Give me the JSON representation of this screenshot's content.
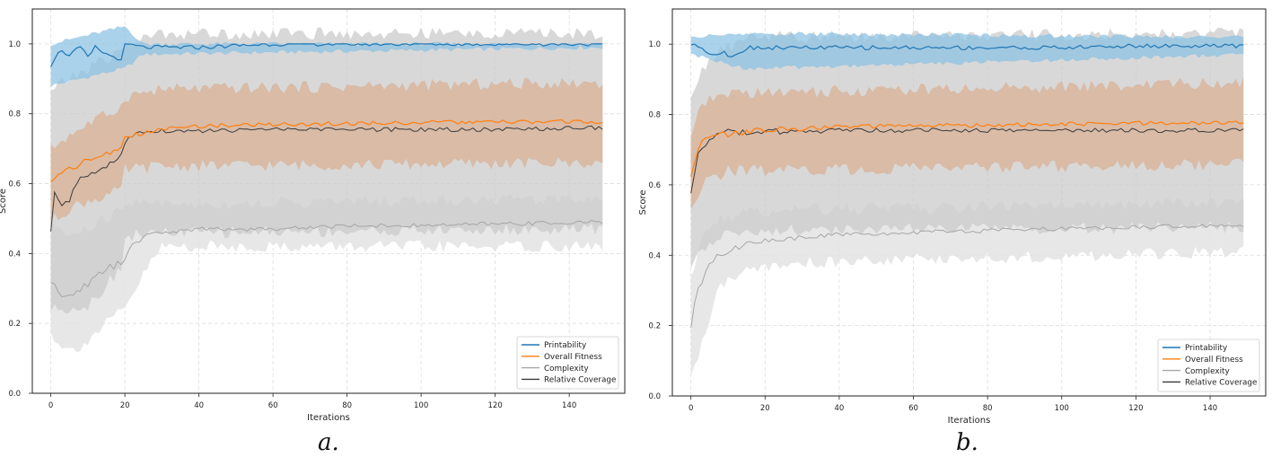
{
  "captions": [
    "a.",
    "b."
  ],
  "colors": {
    "printability": "#1f77b4",
    "overall_fitness": "#ff7f0e",
    "complexity": "#a6a6a6",
    "relative_coverage": "#3a3a3a",
    "band_orange": "#d9b296",
    "band_gray": "#cbcbcb",
    "band_light": "#e3e3e3",
    "band_blue": "#8ec3e3"
  },
  "chart_data": [
    {
      "type": "line",
      "panel": "a.",
      "title": "",
      "xlabel": "Iterations",
      "ylabel": "Score",
      "xlim": [
        -5,
        155
      ],
      "ylim": [
        0.0,
        1.1
      ],
      "xticks": [
        0,
        20,
        40,
        60,
        80,
        100,
        120,
        140
      ],
      "yticks": [
        0.0,
        0.2,
        0.4,
        0.6,
        0.8,
        1.0
      ],
      "grid": true,
      "legend_position": "bottom-right",
      "iterations": [
        0,
        150
      ],
      "series": [
        {
          "name": "Printability",
          "points": [
            [
              0,
              0.94
            ],
            [
              2,
              0.98
            ],
            [
              5,
              0.97
            ],
            [
              8,
              0.99
            ],
            [
              10,
              0.96
            ],
            [
              12,
              0.99
            ],
            [
              15,
              0.97
            ],
            [
              18,
              0.96
            ],
            [
              19,
              0.95
            ],
            [
              20,
              1.0
            ],
            [
              25,
              0.99
            ],
            [
              30,
              0.99
            ],
            [
              40,
              0.99
            ],
            [
              60,
              1.0
            ],
            [
              80,
              1.0
            ],
            [
              100,
              1.0
            ],
            [
              120,
              1.0
            ],
            [
              149,
              1.0
            ]
          ],
          "band": [
            [
              0,
              0.88,
              1.0
            ],
            [
              20,
              0.93,
              1.05
            ],
            [
              25,
              0.97,
              1.0
            ],
            [
              149,
              0.99,
              1.0
            ]
          ]
        },
        {
          "name": "Overall Fitness",
          "points": [
            [
              0,
              0.6
            ],
            [
              2,
              0.63
            ],
            [
              5,
              0.645
            ],
            [
              10,
              0.665
            ],
            [
              15,
              0.685
            ],
            [
              19,
              0.71
            ],
            [
              20,
              0.725
            ],
            [
              25,
              0.745
            ],
            [
              30,
              0.755
            ],
            [
              40,
              0.765
            ],
            [
              60,
              0.77
            ],
            [
              80,
              0.772
            ],
            [
              100,
              0.775
            ],
            [
              120,
              0.776
            ],
            [
              149,
              0.778
            ]
          ],
          "band": [
            [
              0,
              0.49,
              0.7
            ],
            [
              5,
              0.53,
              0.74
            ],
            [
              10,
              0.55,
              0.77
            ],
            [
              19,
              0.58,
              0.82
            ],
            [
              20,
              0.64,
              0.85
            ],
            [
              30,
              0.65,
              0.87
            ],
            [
              149,
              0.66,
              0.89
            ]
          ]
        },
        {
          "name": "Complexity",
          "points": [
            [
              0,
              0.32
            ],
            [
              3,
              0.27
            ],
            [
              6,
              0.29
            ],
            [
              10,
              0.31
            ],
            [
              14,
              0.35
            ],
            [
              18,
              0.37
            ],
            [
              20,
              0.38
            ],
            [
              22,
              0.42
            ],
            [
              25,
              0.45
            ],
            [
              30,
              0.46
            ],
            [
              40,
              0.47
            ],
            [
              60,
              0.47
            ],
            [
              80,
              0.48
            ],
            [
              100,
              0.48
            ],
            [
              120,
              0.485
            ],
            [
              149,
              0.49
            ]
          ],
          "band": [
            [
              0,
              0.17,
              0.49
            ],
            [
              5,
              0.12,
              0.45
            ],
            [
              10,
              0.15,
              0.47
            ],
            [
              15,
              0.2,
              0.5
            ],
            [
              20,
              0.24,
              0.53
            ],
            [
              25,
              0.34,
              0.56
            ],
            [
              30,
              0.42,
              0.54
            ],
            [
              149,
              0.42,
              0.56
            ]
          ]
        },
        {
          "name": "Relative Coverage",
          "points": [
            [
              0,
              0.46
            ],
            [
              1,
              0.575
            ],
            [
              3,
              0.54
            ],
            [
              5,
              0.555
            ],
            [
              8,
              0.62
            ],
            [
              10,
              0.63
            ],
            [
              12,
              0.62
            ],
            [
              15,
              0.65
            ],
            [
              18,
              0.67
            ],
            [
              20,
              0.71
            ],
            [
              22,
              0.74
            ],
            [
              25,
              0.745
            ],
            [
              30,
              0.75
            ],
            [
              40,
              0.75
            ],
            [
              60,
              0.755
            ],
            [
              80,
              0.755
            ],
            [
              100,
              0.755
            ],
            [
              120,
              0.755
            ],
            [
              149,
              0.76
            ]
          ],
          "band": [
            [
              0,
              0.24,
              0.87
            ],
            [
              10,
              0.25,
              0.93
            ],
            [
              19,
              0.36,
              0.98
            ],
            [
              20,
              0.45,
              1.0
            ],
            [
              30,
              0.46,
              1.03
            ],
            [
              149,
              0.47,
              1.03
            ]
          ]
        }
      ]
    },
    {
      "type": "line",
      "panel": "b.",
      "title": "",
      "xlabel": "Iterations",
      "ylabel": "Score",
      "xlim": [
        -5,
        155
      ],
      "ylim": [
        0.0,
        1.1
      ],
      "xticks": [
        0,
        20,
        40,
        60,
        80,
        100,
        120,
        140
      ],
      "yticks": [
        0.0,
        0.2,
        0.4,
        0.6,
        0.8,
        1.0
      ],
      "grid": true,
      "legend_position": "bottom-right",
      "iterations": [
        0,
        150
      ],
      "series": [
        {
          "name": "Printability",
          "points": [
            [
              0,
              1.0
            ],
            [
              3,
              0.99
            ],
            [
              6,
              0.97
            ],
            [
              9,
              0.98
            ],
            [
              11,
              0.96
            ],
            [
              13,
              0.98
            ],
            [
              16,
              0.99
            ],
            [
              20,
              0.99
            ],
            [
              30,
              0.99
            ],
            [
              40,
              0.99
            ],
            [
              60,
              0.99
            ],
            [
              80,
              0.99
            ],
            [
              100,
              0.99
            ],
            [
              120,
              0.995
            ],
            [
              149,
              0.995
            ]
          ],
          "band": [
            [
              0,
              0.97,
              1.02
            ],
            [
              15,
              0.93,
              1.03
            ],
            [
              149,
              0.97,
              1.02
            ]
          ]
        },
        {
          "name": "Overall Fitness",
          "points": [
            [
              0,
              0.62
            ],
            [
              2,
              0.71
            ],
            [
              5,
              0.735
            ],
            [
              10,
              0.745
            ],
            [
              20,
              0.755
            ],
            [
              30,
              0.76
            ],
            [
              40,
              0.765
            ],
            [
              60,
              0.768
            ],
            [
              80,
              0.77
            ],
            [
              100,
              0.772
            ],
            [
              120,
              0.775
            ],
            [
              149,
              0.776
            ]
          ],
          "band": [
            [
              0,
              0.52,
              0.73
            ],
            [
              3,
              0.6,
              0.83
            ],
            [
              10,
              0.64,
              0.86
            ],
            [
              149,
              0.66,
              0.89
            ]
          ]
        },
        {
          "name": "Complexity",
          "points": [
            [
              0,
              0.19
            ],
            [
              1,
              0.27
            ],
            [
              3,
              0.33
            ],
            [
              5,
              0.37
            ],
            [
              7,
              0.4
            ],
            [
              10,
              0.41
            ],
            [
              15,
              0.43
            ],
            [
              20,
              0.44
            ],
            [
              30,
              0.45
            ],
            [
              40,
              0.46
            ],
            [
              60,
              0.465
            ],
            [
              80,
              0.47
            ],
            [
              100,
              0.475
            ],
            [
              120,
              0.48
            ],
            [
              149,
              0.485
            ]
          ],
          "band": [
            [
              0,
              0.05,
              0.34
            ],
            [
              3,
              0.15,
              0.46
            ],
            [
              8,
              0.32,
              0.5
            ],
            [
              15,
              0.35,
              0.52
            ],
            [
              30,
              0.38,
              0.53
            ],
            [
              149,
              0.41,
              0.55
            ]
          ]
        },
        {
          "name": "Relative Coverage",
          "points": [
            [
              0,
              0.58
            ],
            [
              2,
              0.69
            ],
            [
              4,
              0.72
            ],
            [
              7,
              0.74
            ],
            [
              10,
              0.75
            ],
            [
              15,
              0.75
            ],
            [
              20,
              0.75
            ],
            [
              30,
              0.75
            ],
            [
              40,
              0.755
            ],
            [
              60,
              0.755
            ],
            [
              80,
              0.755
            ],
            [
              100,
              0.755
            ],
            [
              120,
              0.755
            ],
            [
              149,
              0.755
            ]
          ],
          "band": [
            [
              0,
              0.35,
              0.85
            ],
            [
              3,
              0.42,
              0.93
            ],
            [
              8,
              0.46,
              0.98
            ],
            [
              15,
              0.47,
              1.02
            ],
            [
              149,
              0.48,
              1.03
            ]
          ]
        }
      ]
    }
  ]
}
